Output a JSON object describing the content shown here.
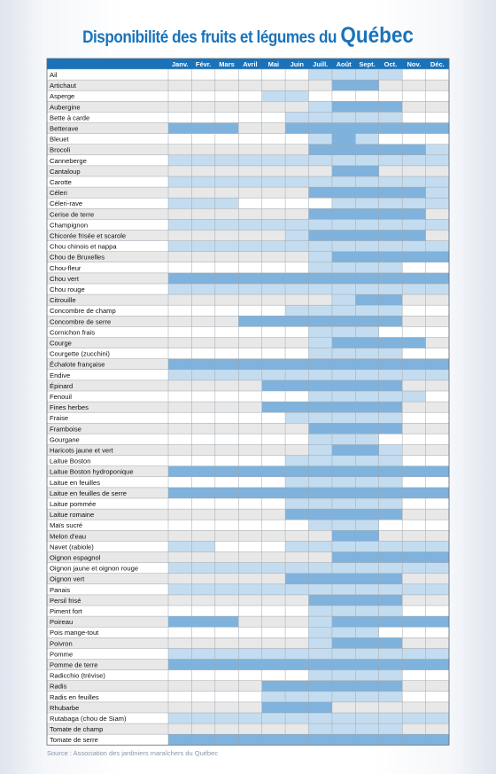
{
  "title_main": "Disponibilité des fruits et légumes du",
  "title_emphasis": "Québec",
  "source": "Source : Association des jardiniers maraîchers du Québec",
  "colors": {
    "header": "#1a73ba",
    "strong": "#7fb2dc",
    "light": "#c4dcef",
    "none_white": "#ffffff",
    "none_grey": "#e8e8e8",
    "grid": "#9fa6ad",
    "title": "#1a73ba"
  },
  "chart_data": {
    "type": "table",
    "title": "Disponibilité des fruits et légumes du Québec",
    "months": [
      "Janv.",
      "Févr.",
      "Mars",
      "Avril",
      "Mai",
      "Juin",
      "Juill.",
      "Août",
      "Sept.",
      "Oct.",
      "Nov.",
      "Déc."
    ],
    "legend_levels": {
      "0": "not available",
      "1": "some availability (light blue)",
      "2": "peak availability (medium blue)"
    },
    "rows": [
      {
        "name": "Ail",
        "levels": [
          0,
          0,
          0,
          0,
          0,
          0,
          1,
          1,
          1,
          1,
          0,
          0
        ]
      },
      {
        "name": "Artichaut",
        "levels": [
          0,
          0,
          0,
          0,
          0,
          0,
          0,
          2,
          2,
          0,
          0,
          0
        ]
      },
      {
        "name": "Asperge",
        "levels": [
          0,
          0,
          0,
          0,
          1,
          1,
          0,
          0,
          0,
          0,
          0,
          0
        ]
      },
      {
        "name": "Aubergine",
        "levels": [
          0,
          0,
          0,
          0,
          0,
          0,
          1,
          2,
          2,
          2,
          0,
          0
        ]
      },
      {
        "name": "Bette à carde",
        "levels": [
          0,
          0,
          0,
          0,
          0,
          1,
          1,
          1,
          1,
          1,
          0,
          0
        ]
      },
      {
        "name": "Betterave",
        "levels": [
          2,
          2,
          2,
          0,
          0,
          2,
          2,
          2,
          2,
          2,
          2,
          2
        ]
      },
      {
        "name": "Bleuet",
        "levels": [
          0,
          0,
          0,
          0,
          0,
          0,
          1,
          2,
          1,
          0,
          0,
          0
        ]
      },
      {
        "name": "Brocoli",
        "levels": [
          0,
          0,
          0,
          0,
          0,
          0,
          2,
          2,
          2,
          2,
          2,
          1
        ]
      },
      {
        "name": "Canneberge",
        "levels": [
          1,
          1,
          1,
          1,
          1,
          1,
          1,
          1,
          1,
          1,
          1,
          1
        ]
      },
      {
        "name": "Cantaloup",
        "levels": [
          0,
          0,
          0,
          0,
          0,
          0,
          0,
          2,
          2,
          0,
          0,
          0
        ]
      },
      {
        "name": "Carotte",
        "levels": [
          1,
          1,
          1,
          1,
          1,
          1,
          1,
          1,
          1,
          1,
          1,
          1
        ]
      },
      {
        "name": "Céleri",
        "levels": [
          0,
          0,
          0,
          0,
          0,
          0,
          2,
          2,
          2,
          2,
          2,
          1
        ]
      },
      {
        "name": "Céleri-rave",
        "levels": [
          1,
          1,
          1,
          0,
          0,
          0,
          0,
          1,
          1,
          1,
          1,
          1
        ]
      },
      {
        "name": "Cerise de terre",
        "levels": [
          0,
          0,
          0,
          0,
          0,
          0,
          2,
          2,
          2,
          2,
          2,
          0
        ]
      },
      {
        "name": "Champignon",
        "levels": [
          1,
          1,
          1,
          1,
          1,
          1,
          1,
          1,
          1,
          1,
          1,
          1
        ]
      },
      {
        "name": "Chicorée frisée et scarole",
        "levels": [
          0,
          0,
          0,
          0,
          0,
          1,
          2,
          2,
          2,
          2,
          2,
          0
        ]
      },
      {
        "name": "Chou chinois et nappa",
        "levels": [
          1,
          1,
          1,
          1,
          1,
          1,
          1,
          1,
          1,
          1,
          1,
          1
        ]
      },
      {
        "name": "Chou de Bruxelles",
        "levels": [
          0,
          0,
          0,
          0,
          0,
          0,
          1,
          2,
          2,
          2,
          2,
          2
        ]
      },
      {
        "name": "Chou-fleur",
        "levels": [
          0,
          0,
          0,
          0,
          0,
          0,
          1,
          1,
          1,
          1,
          0,
          0
        ]
      },
      {
        "name": "Chou vert",
        "levels": [
          2,
          2,
          2,
          2,
          2,
          2,
          2,
          2,
          2,
          2,
          2,
          2
        ]
      },
      {
        "name": "Chou rouge",
        "levels": [
          1,
          1,
          1,
          1,
          1,
          1,
          1,
          1,
          1,
          1,
          1,
          1
        ]
      },
      {
        "name": "Citrouille",
        "levels": [
          0,
          0,
          0,
          0,
          0,
          0,
          0,
          1,
          2,
          2,
          0,
          0
        ]
      },
      {
        "name": "Concombre de champ",
        "levels": [
          0,
          0,
          0,
          0,
          0,
          1,
          1,
          1,
          1,
          1,
          0,
          0
        ]
      },
      {
        "name": "Concombre de serre",
        "levels": [
          0,
          0,
          0,
          2,
          2,
          2,
          2,
          2,
          2,
          2,
          0,
          0
        ]
      },
      {
        "name": "Cornichon frais",
        "levels": [
          0,
          0,
          0,
          0,
          0,
          0,
          1,
          1,
          1,
          0,
          0,
          0
        ]
      },
      {
        "name": "Courge",
        "levels": [
          0,
          0,
          0,
          0,
          0,
          0,
          1,
          2,
          2,
          2,
          2,
          0
        ]
      },
      {
        "name": "Courgette (zucchini)",
        "levels": [
          0,
          0,
          0,
          0,
          0,
          0,
          1,
          1,
          1,
          1,
          0,
          0
        ]
      },
      {
        "name": "Échalote française",
        "levels": [
          2,
          2,
          2,
          2,
          2,
          2,
          2,
          2,
          2,
          2,
          2,
          2
        ]
      },
      {
        "name": "Endive",
        "levels": [
          1,
          1,
          1,
          1,
          1,
          1,
          1,
          1,
          1,
          1,
          1,
          1
        ]
      },
      {
        "name": "Épinard",
        "levels": [
          0,
          0,
          0,
          0,
          2,
          2,
          2,
          2,
          2,
          2,
          0,
          0
        ]
      },
      {
        "name": "Fenouil",
        "levels": [
          0,
          0,
          0,
          0,
          0,
          0,
          1,
          1,
          1,
          1,
          1,
          0
        ]
      },
      {
        "name": "Fines herbes",
        "levels": [
          0,
          0,
          0,
          0,
          2,
          2,
          2,
          2,
          2,
          2,
          0,
          0
        ]
      },
      {
        "name": "Fraise",
        "levels": [
          0,
          0,
          0,
          0,
          0,
          1,
          1,
          1,
          1,
          1,
          0,
          0
        ]
      },
      {
        "name": "Framboise",
        "levels": [
          0,
          0,
          0,
          0,
          0,
          0,
          2,
          2,
          2,
          2,
          0,
          0
        ]
      },
      {
        "name": "Gourgane",
        "levels": [
          0,
          0,
          0,
          0,
          0,
          0,
          1,
          1,
          1,
          0,
          0,
          0
        ]
      },
      {
        "name": "Haricots jaune et vert",
        "levels": [
          0,
          0,
          0,
          0,
          0,
          0,
          1,
          2,
          2,
          1,
          0,
          0
        ]
      },
      {
        "name": "Laitue Boston",
        "levels": [
          0,
          0,
          0,
          0,
          0,
          1,
          1,
          1,
          1,
          1,
          0,
          0
        ]
      },
      {
        "name": "Laitue Boston hydroponique",
        "levels": [
          2,
          2,
          2,
          2,
          2,
          2,
          2,
          2,
          2,
          2,
          2,
          2
        ]
      },
      {
        "name": "Laitue en feuilles",
        "levels": [
          0,
          0,
          0,
          0,
          0,
          1,
          1,
          1,
          1,
          1,
          0,
          0
        ]
      },
      {
        "name": "Laitue en feuilles de serre",
        "levels": [
          2,
          2,
          2,
          2,
          2,
          2,
          2,
          2,
          2,
          2,
          2,
          2
        ]
      },
      {
        "name": "Laitue pommée",
        "levels": [
          0,
          0,
          0,
          0,
          0,
          1,
          1,
          1,
          1,
          1,
          0,
          0
        ]
      },
      {
        "name": "Laitue romaine",
        "levels": [
          0,
          0,
          0,
          0,
          0,
          2,
          2,
          2,
          2,
          2,
          0,
          0
        ]
      },
      {
        "name": "Maïs sucré",
        "levels": [
          0,
          0,
          0,
          0,
          0,
          0,
          1,
          1,
          1,
          0,
          0,
          0
        ]
      },
      {
        "name": "Melon d'eau",
        "levels": [
          0,
          0,
          0,
          0,
          0,
          0,
          0,
          2,
          2,
          0,
          0,
          0
        ]
      },
      {
        "name": "Navet (rabiole)",
        "levels": [
          1,
          1,
          0,
          0,
          0,
          1,
          1,
          1,
          1,
          1,
          1,
          1
        ]
      },
      {
        "name": "Oignon espagnol",
        "levels": [
          0,
          0,
          0,
          0,
          0,
          0,
          0,
          2,
          2,
          2,
          2,
          2
        ]
      },
      {
        "name": "Oignon jaune et oignon rouge",
        "levels": [
          1,
          1,
          1,
          1,
          1,
          1,
          1,
          1,
          1,
          1,
          1,
          1
        ]
      },
      {
        "name": "Oignon vert",
        "levels": [
          0,
          0,
          0,
          0,
          0,
          2,
          2,
          2,
          2,
          2,
          0,
          0
        ]
      },
      {
        "name": "Panais",
        "levels": [
          1,
          1,
          1,
          1,
          1,
          1,
          1,
          1,
          1,
          1,
          1,
          1
        ]
      },
      {
        "name": "Persil frisé",
        "levels": [
          0,
          0,
          0,
          0,
          0,
          0,
          2,
          2,
          2,
          2,
          0,
          0
        ]
      },
      {
        "name": "Piment fort",
        "levels": [
          0,
          0,
          0,
          0,
          0,
          0,
          1,
          1,
          1,
          1,
          0,
          0
        ]
      },
      {
        "name": "Poireau",
        "levels": [
          2,
          2,
          2,
          0,
          0,
          0,
          1,
          2,
          2,
          2,
          2,
          2
        ]
      },
      {
        "name": "Pois mange-tout",
        "levels": [
          0,
          0,
          0,
          0,
          0,
          0,
          1,
          1,
          1,
          0,
          0,
          0
        ]
      },
      {
        "name": "Poivron",
        "levels": [
          0,
          0,
          0,
          0,
          0,
          0,
          1,
          2,
          2,
          2,
          0,
          0
        ]
      },
      {
        "name": "Pomme",
        "levels": [
          1,
          1,
          1,
          1,
          1,
          1,
          1,
          1,
          1,
          1,
          1,
          1
        ]
      },
      {
        "name": "Pomme de terre",
        "levels": [
          2,
          2,
          2,
          2,
          2,
          2,
          2,
          2,
          2,
          2,
          2,
          2
        ]
      },
      {
        "name": "Radicchio (trévise)",
        "levels": [
          0,
          0,
          0,
          0,
          0,
          0,
          1,
          1,
          1,
          1,
          0,
          0
        ]
      },
      {
        "name": "Radis",
        "levels": [
          0,
          0,
          0,
          0,
          2,
          2,
          2,
          2,
          2,
          2,
          0,
          0
        ]
      },
      {
        "name": "Radis en feuilles",
        "levels": [
          0,
          0,
          0,
          0,
          1,
          1,
          1,
          1,
          1,
          1,
          0,
          0
        ]
      },
      {
        "name": "Rhubarbe",
        "levels": [
          0,
          0,
          0,
          0,
          2,
          2,
          2,
          0,
          0,
          0,
          0,
          0
        ]
      },
      {
        "name": "Rutabaga (chou de Siam)",
        "levels": [
          1,
          1,
          1,
          1,
          1,
          1,
          1,
          1,
          1,
          1,
          1,
          1
        ]
      },
      {
        "name": "Tomate de champ",
        "levels": [
          0,
          0,
          0,
          0,
          0,
          0,
          1,
          1,
          1,
          1,
          0,
          0
        ]
      },
      {
        "name": "Tomate de serre",
        "levels": [
          2,
          2,
          2,
          2,
          2,
          2,
          2,
          2,
          2,
          2,
          2,
          2
        ]
      }
    ]
  }
}
